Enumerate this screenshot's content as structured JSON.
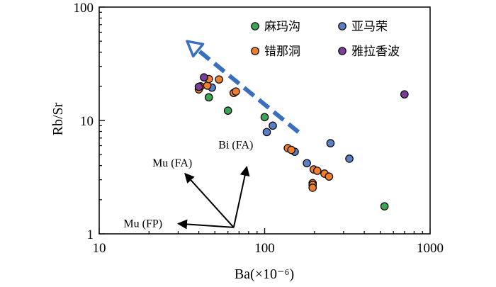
{
  "chart_data": {
    "type": "scatter",
    "xlabel": "Ba(×10⁻⁶)",
    "ylabel": "Rb/Sr",
    "xscale": "log",
    "yscale": "log",
    "xlim": [
      10,
      1000
    ],
    "ylim": [
      1,
      100
    ],
    "xticks": [
      "10",
      "100",
      "1000"
    ],
    "yticks": [
      "1",
      "10",
      "100"
    ],
    "grid": false,
    "legend_position": "top-right",
    "series": [
      {
        "name": "麻玛沟",
        "color": "#3aa556",
        "points": [
          [
            46,
            16
          ],
          [
            60,
            12.2
          ],
          [
            100,
            10.7
          ],
          [
            530,
            1.75
          ]
        ]
      },
      {
        "name": "亚马荣",
        "color": "#5b7fc4",
        "points": [
          [
            48,
            19.5
          ],
          [
            103,
            7.9
          ],
          [
            112,
            9
          ],
          [
            152,
            5.3
          ],
          [
            180,
            4.2
          ],
          [
            250,
            6.3
          ],
          [
            325,
            4.6
          ]
        ]
      },
      {
        "name": "错那洞",
        "color": "#ef7f2d",
        "points": [
          [
            40,
            18.8
          ],
          [
            41,
            20
          ],
          [
            45,
            20.3
          ],
          [
            46,
            23.2
          ],
          [
            53,
            23
          ],
          [
            65,
            17.5
          ],
          [
            67,
            18
          ],
          [
            138,
            5.7
          ],
          [
            145,
            5.5
          ],
          [
            198,
            3.7
          ],
          [
            208,
            3.6
          ],
          [
            230,
            3.4
          ],
          [
            245,
            3.2
          ],
          [
            195,
            2.8
          ],
          [
            195,
            2.7
          ],
          [
            195,
            2.55
          ]
        ]
      },
      {
        "name": "雅拉香波",
        "color": "#7b3e96",
        "points": [
          [
            40,
            19.8
          ],
          [
            43,
            24
          ],
          [
            700,
            17
          ]
        ]
      }
    ],
    "annotations": [
      {
        "text": "Mu (FP)"
      },
      {
        "text": "Mu (FA)"
      },
      {
        "text": "Bi (FA)"
      }
    ],
    "vectors": {
      "origin": [
        65,
        1.14
      ],
      "targets": [
        [
          30,
          1.23
        ],
        [
          33,
          3.4
        ],
        [
          78,
          3.9
        ]
      ]
    },
    "trend_arrow": {
      "color": "#3a6fbf",
      "from": [
        160,
        7.9
      ],
      "to": [
        34,
        50
      ]
    }
  }
}
